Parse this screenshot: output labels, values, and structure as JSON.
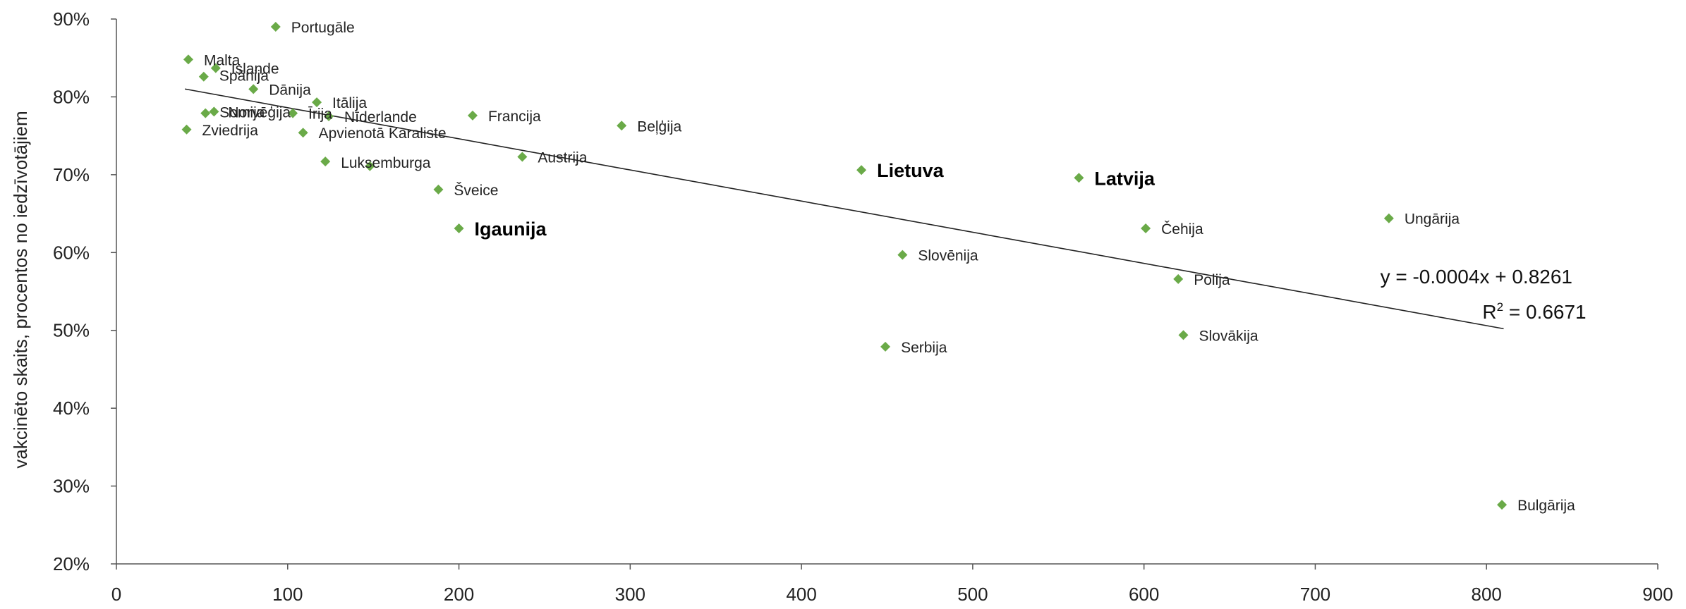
{
  "chart_data": {
    "type": "scatter",
    "xlabel": "",
    "ylabel": "vakcinēto skaits, procentos no iedzīvotājiem",
    "xlim": [
      0,
      900
    ],
    "ylim": [
      20,
      90
    ],
    "x_ticks": [
      "0",
      "100",
      "200",
      "300",
      "400",
      "500",
      "600",
      "700",
      "800",
      "900"
    ],
    "y_ticks": [
      "20%",
      "30%",
      "40%",
      "50%",
      "60%",
      "70%",
      "80%",
      "90%"
    ],
    "marker_color": "#6aaa48",
    "grid": false,
    "points": [
      {
        "label": "Portugāle",
        "x": 93,
        "y": 89.0,
        "highlight": false
      },
      {
        "label": "Malta",
        "x": 42,
        "y": 84.8,
        "highlight": false
      },
      {
        "label": "Islande",
        "x": 58,
        "y": 83.7,
        "highlight": false
      },
      {
        "label": "Spānija",
        "x": 51,
        "y": 82.6,
        "highlight": false
      },
      {
        "label": "Dānija",
        "x": 80,
        "y": 81.0,
        "highlight": false
      },
      {
        "label": "Itālija",
        "x": 117,
        "y": 79.3,
        "highlight": false
      },
      {
        "label": "Somija",
        "x": 52,
        "y": 77.9,
        "highlight": false
      },
      {
        "label": "Norvēģija",
        "x": 57,
        "y": 78.1,
        "highlight": false
      },
      {
        "label": "Īrija",
        "x": 103,
        "y": 77.9,
        "highlight": false
      },
      {
        "label": "Nīderlande",
        "x": 124,
        "y": 77.5,
        "highlight": false
      },
      {
        "label": "Francija",
        "x": 208,
        "y": 77.6,
        "highlight": false
      },
      {
        "label": "Beļģija",
        "x": 295,
        "y": 76.3,
        "highlight": false
      },
      {
        "label": "Zviedrija",
        "x": 41,
        "y": 75.8,
        "highlight": false
      },
      {
        "label": "Apvienotā Karaliste",
        "x": 109,
        "y": 75.4,
        "highlight": false
      },
      {
        "label": "Austrija",
        "x": 237,
        "y": 72.3,
        "highlight": false
      },
      {
        "label": "Luksemburga",
        "x": 122,
        "y": 71.7,
        "highlight": false
      },
      {
        "label": "",
        "x": 148,
        "y": 71.1,
        "highlight": false
      },
      {
        "label": "Lietuva",
        "x": 435,
        "y": 70.6,
        "highlight": true
      },
      {
        "label": "Latvija",
        "x": 562,
        "y": 69.6,
        "highlight": true
      },
      {
        "label": "Šveice",
        "x": 188,
        "y": 68.1,
        "highlight": false
      },
      {
        "label": "Ungārija",
        "x": 743,
        "y": 64.4,
        "highlight": false
      },
      {
        "label": "Igaunija",
        "x": 200,
        "y": 63.1,
        "highlight": true
      },
      {
        "label": "Čehija",
        "x": 601,
        "y": 63.1,
        "highlight": false
      },
      {
        "label": "Slovēnija",
        "x": 459,
        "y": 59.7,
        "highlight": false
      },
      {
        "label": "Polija",
        "x": 620,
        "y": 56.6,
        "highlight": false
      },
      {
        "label": "Slovākija",
        "x": 623,
        "y": 49.4,
        "highlight": false
      },
      {
        "label": "Serbija",
        "x": 449,
        "y": 47.9,
        "highlight": false
      },
      {
        "label": "Bulgārija",
        "x": 809,
        "y": 27.6,
        "highlight": false
      }
    ],
    "trendline": {
      "equation": "y = -0.0004x + 0.8261",
      "r2_text": "R2 = 0.6671",
      "slope_pct": -0.04,
      "intercept_pct": 82.61,
      "x_start": 40,
      "x_end": 810,
      "color": "#222222"
    }
  }
}
